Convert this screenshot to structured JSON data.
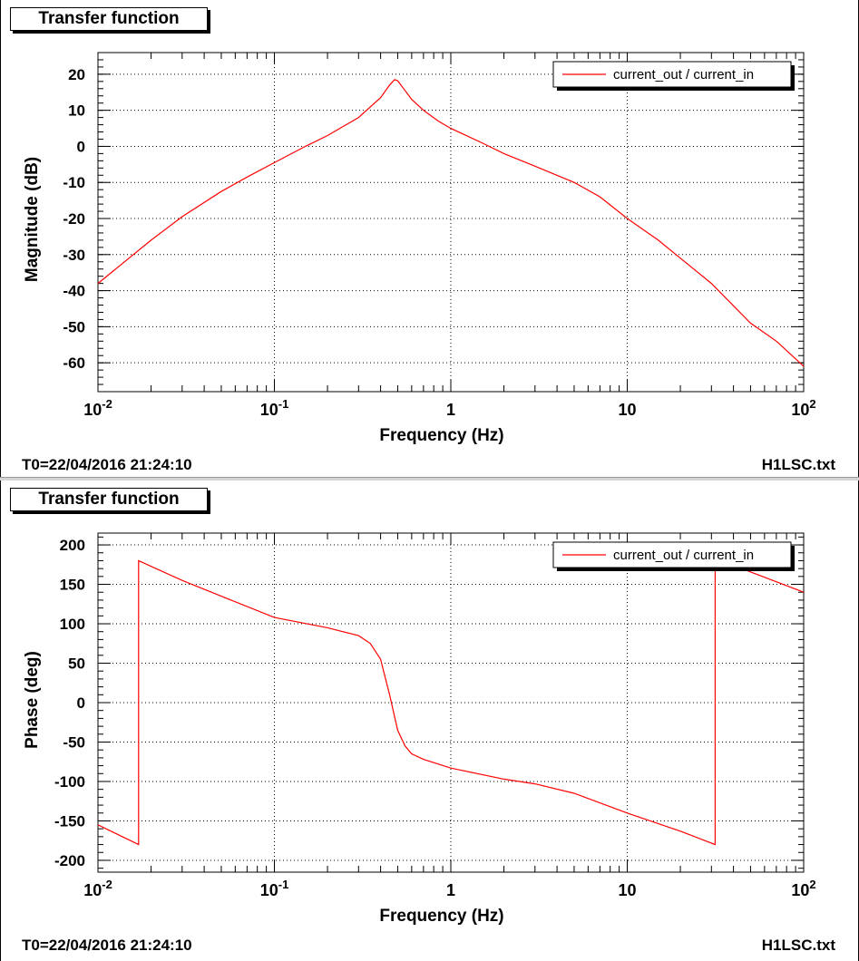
{
  "colors": {
    "series": "#ff0000",
    "grid": "#000000",
    "frame": "#000000"
  },
  "panels": [
    {
      "title": "Transfer function",
      "footer_left": "T0=22/04/2016 21:24:10",
      "footer_right": "H1LSC.txt"
    },
    {
      "title": "Transfer function",
      "footer_left": "T0=22/04/2016 21:24:10",
      "footer_right": "H1LSC.txt"
    }
  ],
  "chart_data": [
    {
      "type": "line",
      "title": "Transfer function",
      "xlabel": "Frequency (Hz)",
      "ylabel": "Magnitude (dB)",
      "x_scale": "log",
      "xlim": [
        0.01,
        100
      ],
      "ylim": [
        -68,
        26
      ],
      "x_ticks": [
        0.01,
        0.1,
        1,
        10,
        100
      ],
      "x_tick_labels": [
        {
          "base": "10",
          "exp": "-2"
        },
        {
          "base": "10",
          "exp": "-1"
        },
        {
          "base": "1",
          "exp": ""
        },
        {
          "base": "10",
          "exp": ""
        },
        {
          "base": "10",
          "exp": "2"
        }
      ],
      "y_ticks": [
        -60,
        -50,
        -40,
        -30,
        -20,
        -10,
        0,
        10,
        20
      ],
      "y_tick_labels": [
        "-60",
        "-50",
        "-40",
        "-30",
        "-20",
        "-10",
        "0",
        "10",
        "20"
      ],
      "grid": true,
      "legend_position": "top-right",
      "series": [
        {
          "name": "current_out / current_in",
          "color": "#ff0000",
          "x": [
            0.01,
            0.02,
            0.03,
            0.05,
            0.07,
            0.1,
            0.15,
            0.2,
            0.3,
            0.4,
            0.45,
            0.48,
            0.5,
            0.55,
            0.6,
            0.7,
            0.85,
            1,
            1.5,
            2,
            3,
            5,
            7,
            10,
            15,
            20,
            30,
            50,
            70,
            100
          ],
          "y": [
            -38,
            -26,
            -19.5,
            -12.5,
            -8.5,
            -4.5,
            0,
            3,
            8,
            13.5,
            17,
            18.5,
            18.2,
            15.5,
            13,
            10,
            7,
            5,
            1,
            -2,
            -5.5,
            -10,
            -14,
            -20,
            -26,
            -31,
            -38,
            -49,
            -54,
            -61
          ]
        }
      ]
    },
    {
      "type": "line",
      "title": "Transfer function",
      "xlabel": "Frequency (Hz)",
      "ylabel": "Phase (deg)",
      "x_scale": "log",
      "xlim": [
        0.01,
        100
      ],
      "ylim": [
        -215,
        215
      ],
      "x_ticks": [
        0.01,
        0.1,
        1,
        10,
        100
      ],
      "x_tick_labels": [
        {
          "base": "10",
          "exp": "-2"
        },
        {
          "base": "10",
          "exp": "-1"
        },
        {
          "base": "1",
          "exp": ""
        },
        {
          "base": "10",
          "exp": ""
        },
        {
          "base": "10",
          "exp": "2"
        }
      ],
      "y_ticks": [
        -200,
        -150,
        -100,
        -50,
        0,
        50,
        100,
        150,
        200
      ],
      "y_tick_labels": [
        "-200",
        "-150",
        "-100",
        "-50",
        "0",
        "50",
        "100",
        "150",
        "200"
      ],
      "grid": true,
      "legend_position": "top-right",
      "series": [
        {
          "name": "current_out / current_in",
          "color": "#ff0000",
          "x": [
            0.01,
            0.017,
            0.017,
            0.03,
            0.05,
            0.1,
            0.2,
            0.3,
            0.35,
            0.4,
            0.45,
            0.5,
            0.55,
            0.6,
            0.7,
            1,
            2,
            3,
            5,
            10,
            20,
            31.5,
            31.5,
            40,
            100
          ],
          "y": [
            -155,
            -180,
            180,
            155,
            135,
            108,
            95,
            85,
            75,
            55,
            10,
            -35,
            -55,
            -65,
            -72,
            -83,
            -97,
            -103,
            -115,
            -140,
            -163,
            -180,
            180,
            174,
            140
          ]
        }
      ]
    }
  ]
}
